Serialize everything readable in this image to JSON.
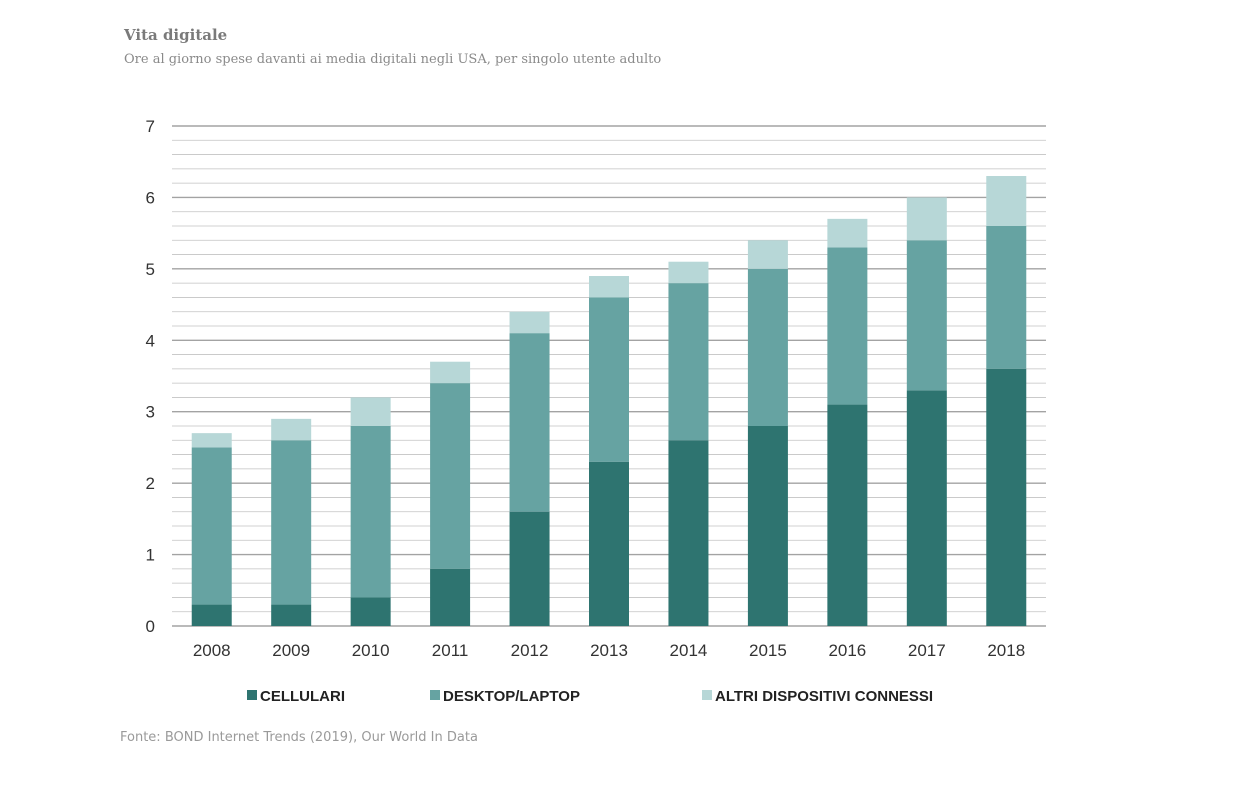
{
  "title": "Vita digitale",
  "subtitle": "Ore al giorno spese davanti ai media digitali negli USA, per singolo utente adulto",
  "source": "Fonte: BOND Internet Trends (2019), Our World In Data",
  "colors": {
    "cellulari": "#2e7470",
    "desktop": "#66a3a2",
    "altri": "#b7d7d7",
    "grid": "#9a9a9a"
  },
  "chart_data": {
    "type": "bar",
    "stacked": true,
    "categories": [
      "2008",
      "2009",
      "2010",
      "2011",
      "2012",
      "2013",
      "2014",
      "2015",
      "2016",
      "2017",
      "2018"
    ],
    "series": [
      {
        "name": "CELLULARI",
        "values": [
          0.3,
          0.3,
          0.4,
          0.8,
          1.6,
          2.3,
          2.6,
          2.8,
          3.1,
          3.3,
          3.6
        ]
      },
      {
        "name": "DESKTOP/LAPTOP",
        "values": [
          2.2,
          2.3,
          2.4,
          2.6,
          2.5,
          2.3,
          2.2,
          2.2,
          2.2,
          2.1,
          2.0
        ]
      },
      {
        "name": "ALTRI DISPOSITIVI CONNESSI",
        "values": [
          0.2,
          0.3,
          0.4,
          0.3,
          0.3,
          0.3,
          0.3,
          0.4,
          0.4,
          0.6,
          0.7
        ]
      }
    ],
    "ylim": [
      0,
      7
    ],
    "yticks": [
      0,
      1,
      2,
      3,
      4,
      5,
      6,
      7
    ],
    "grid": true,
    "legend": "bottom"
  }
}
